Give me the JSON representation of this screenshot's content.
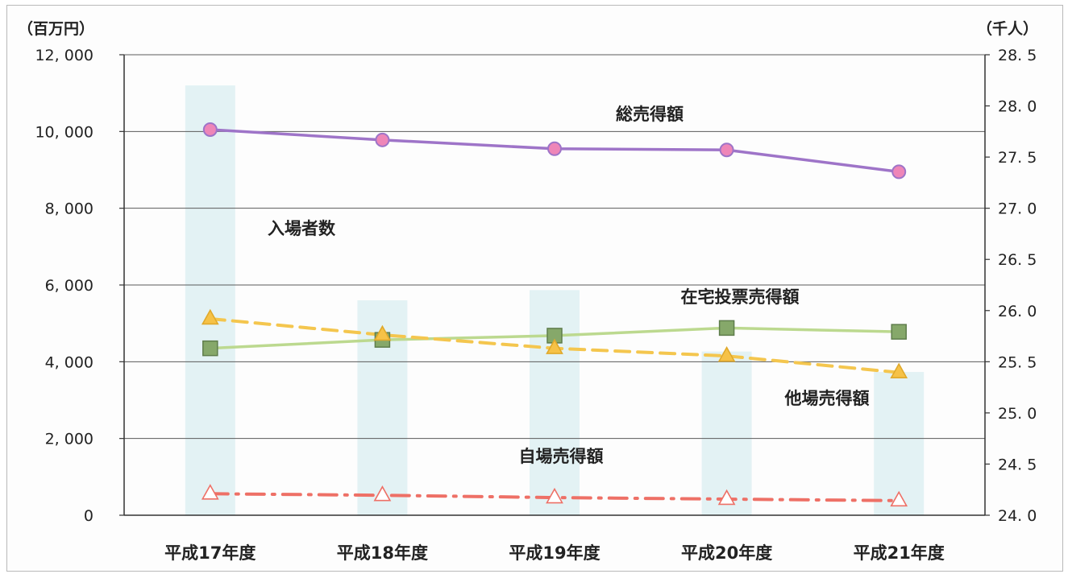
{
  "chart_data": {
    "type": "bar+line",
    "categories": [
      "平成17年度",
      "平成18年度",
      "平成19年度",
      "平成20年度",
      "平成21年度"
    ],
    "left_axis": {
      "unit": "（百万円）",
      "ylim": [
        0,
        12000
      ],
      "ticks": [
        "0",
        "2, 000",
        "4, 000",
        "6, 000",
        "8, 000",
        "10, 000",
        "12, 000"
      ],
      "tick_values": [
        0,
        2000,
        4000,
        6000,
        8000,
        10000,
        12000
      ]
    },
    "right_axis": {
      "unit": "（千人）",
      "ylim": [
        24.0,
        28.5
      ],
      "ticks": [
        "24. 0",
        "24. 5",
        "25. 0",
        "25. 5",
        "26. 0",
        "26. 5",
        "27. 0",
        "27. 5",
        "28. 0",
        "28. 5"
      ],
      "tick_values": [
        24.0,
        24.5,
        25.0,
        25.5,
        26.0,
        26.5,
        27.0,
        27.5,
        28.0,
        28.5
      ]
    },
    "grid": true,
    "series": [
      {
        "name": "入場者数",
        "type": "bar",
        "axis": "right",
        "color": "#e3f2f4",
        "values": [
          28.2,
          26.1,
          26.2,
          25.6,
          25.4
        ]
      },
      {
        "name": "総売得額",
        "type": "line",
        "axis": "left",
        "color": "#9e74c8",
        "marker": "circle",
        "marker_fill": "#ee86b8",
        "dash": "solid",
        "values": [
          10050,
          9780,
          9550,
          9520,
          8950
        ]
      },
      {
        "name": "在宅投票売得額",
        "type": "line",
        "axis": "left",
        "color": "#bcd98f",
        "marker": "square",
        "marker_fill": "#86a86a",
        "dash": "solid",
        "values": [
          4350,
          4570,
          4680,
          4880,
          4780
        ]
      },
      {
        "name": "他場売得額",
        "type": "line",
        "axis": "left",
        "color": "#f4c64e",
        "marker": "triangle",
        "marker_fill": "#f6c247",
        "dash": "dashed",
        "values": [
          5120,
          4700,
          4350,
          4150,
          3720
        ]
      },
      {
        "name": "自場売得額",
        "type": "line",
        "axis": "left",
        "color": "#ee7066",
        "marker": "triangle-open",
        "marker_fill": "#ffffff",
        "dash": "dashdot",
        "values": [
          560,
          520,
          460,
          420,
          380
        ]
      }
    ],
    "annotations": [
      {
        "series": "総売得額",
        "text": "総売得額"
      },
      {
        "series": "入場者数",
        "text": "入場者数"
      },
      {
        "series": "在宅投票売得額",
        "text": "在宅投票売得額"
      },
      {
        "series": "他場売得額",
        "text": "他場売得額"
      },
      {
        "series": "自場売得額",
        "text": "自場売得額"
      }
    ]
  }
}
